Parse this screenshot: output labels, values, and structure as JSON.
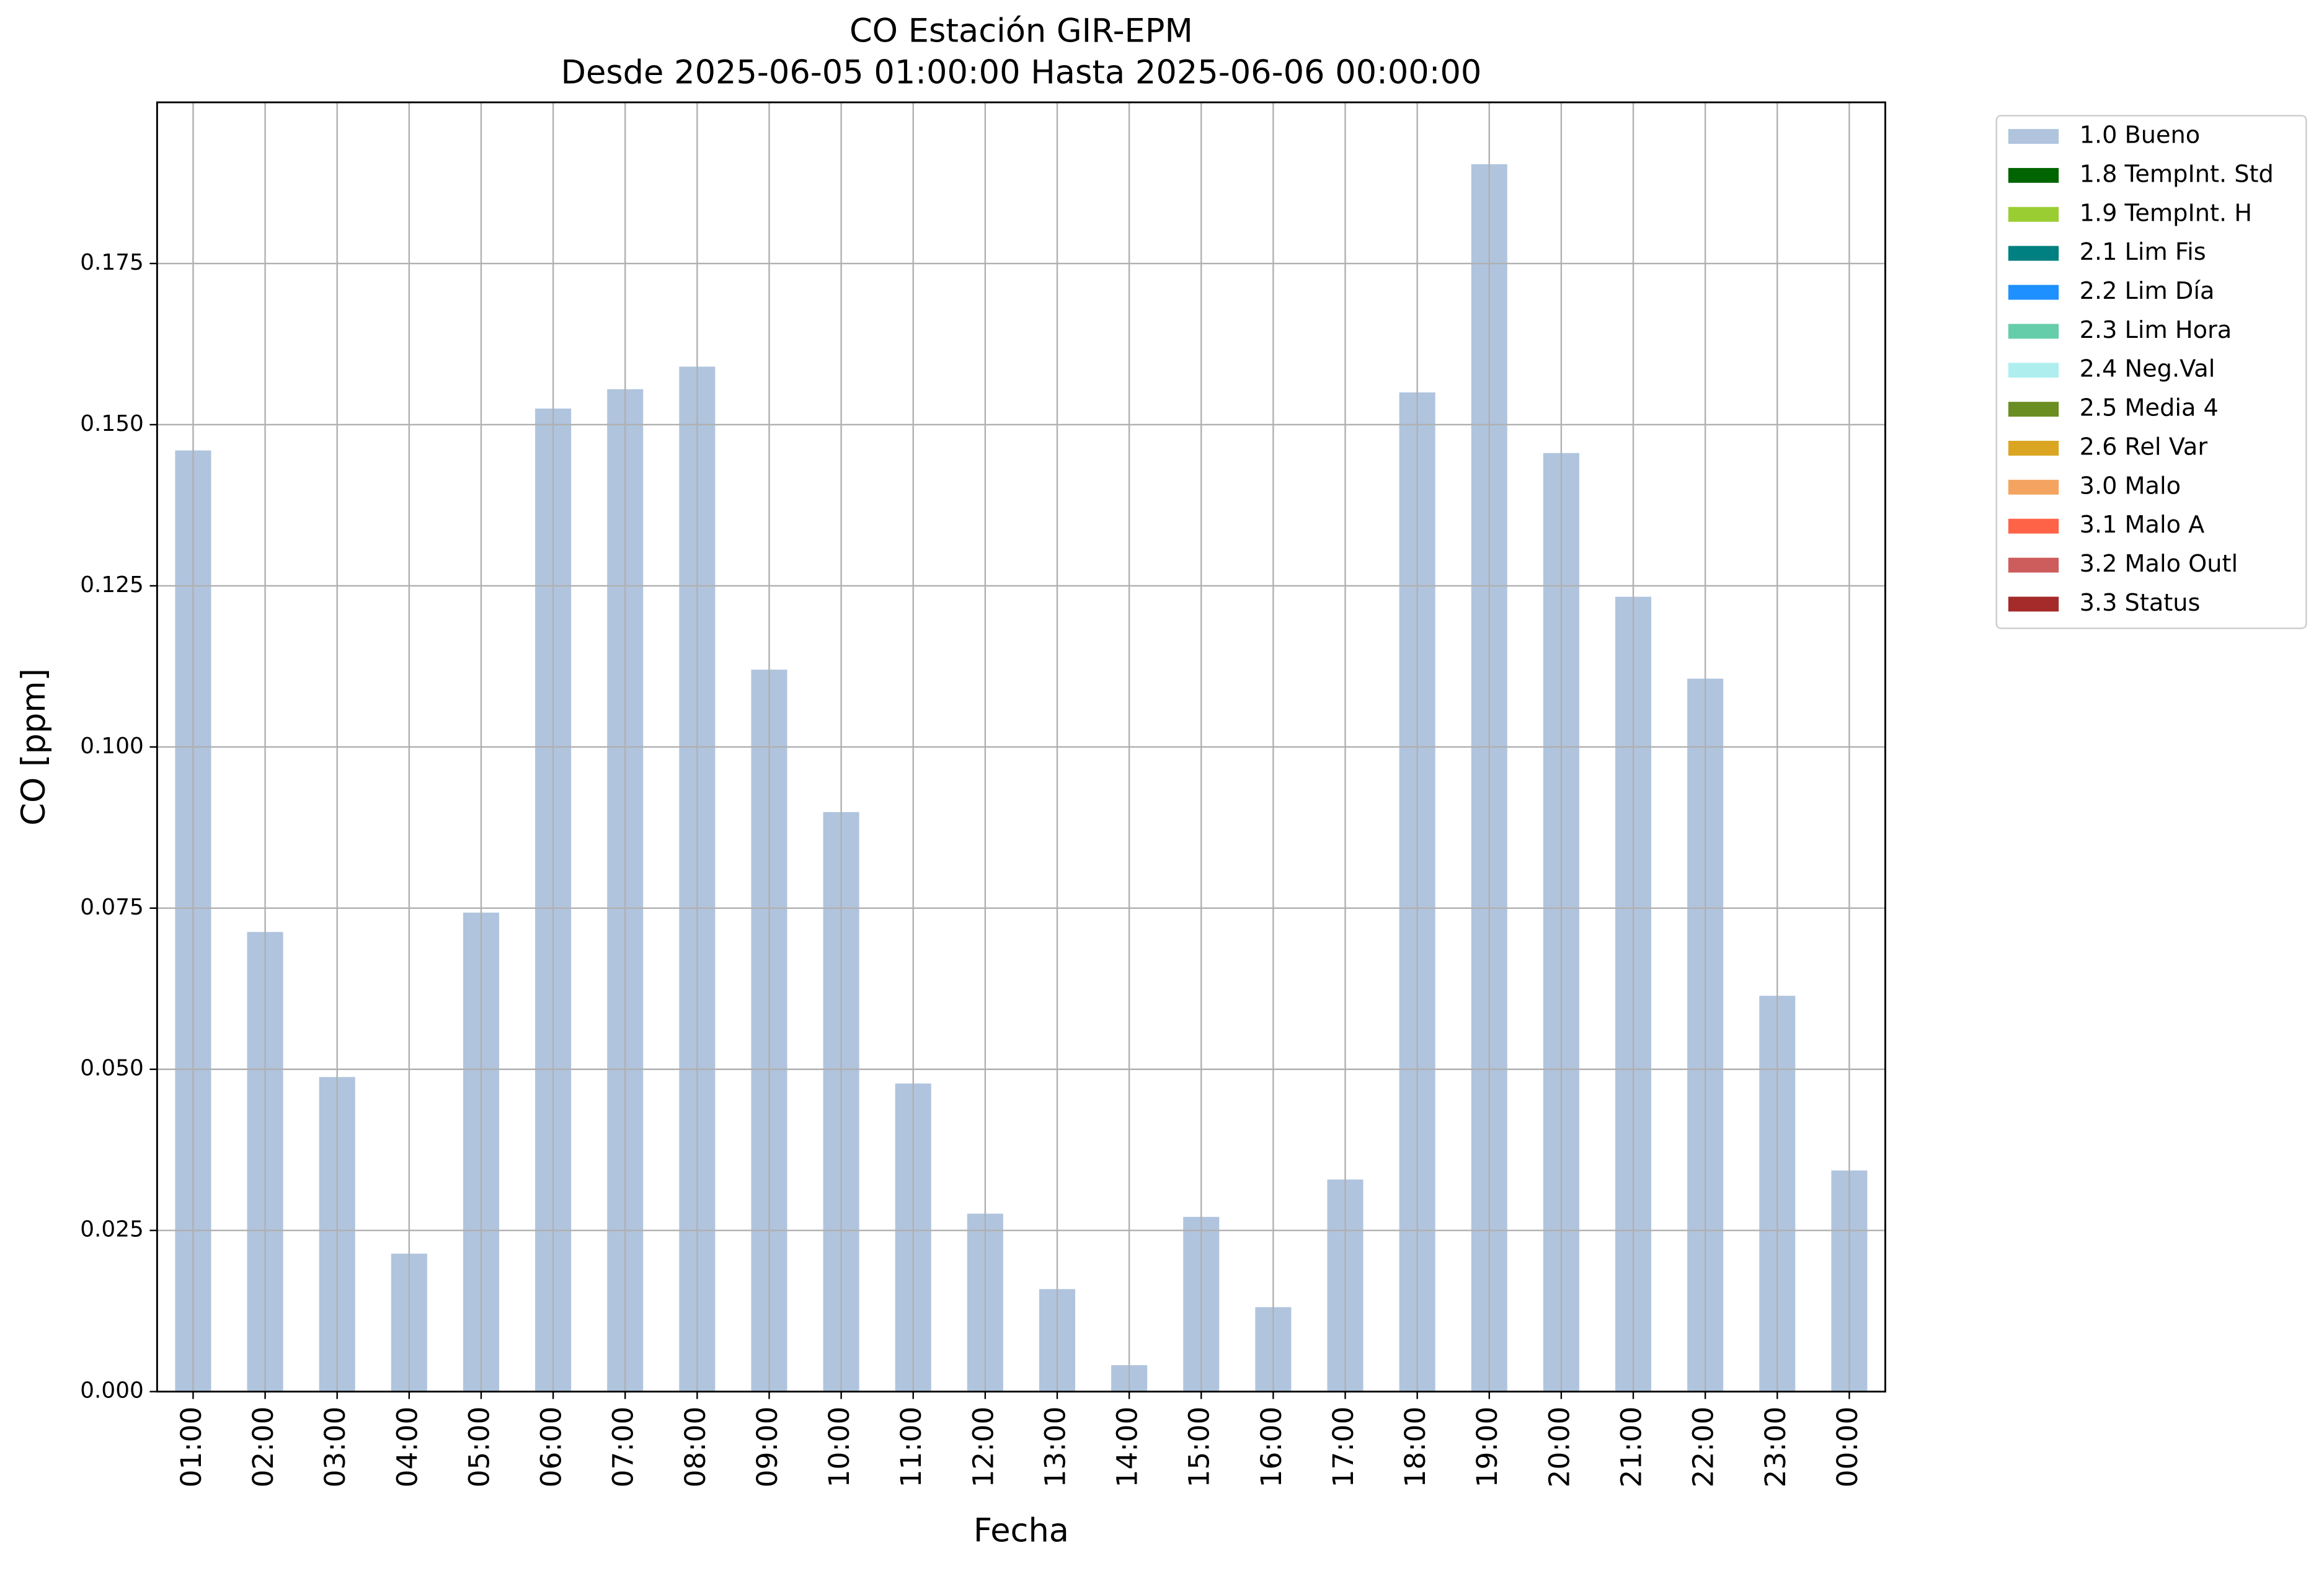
{
  "chart_data": {
    "type": "bar",
    "title": "CO Estación GIR-EPM",
    "subtitle": "Desde 2025-06-05 01:00:00 Hasta 2025-06-06 00:00:00",
    "x_label": "Fecha",
    "y_label": "CO [ppm]",
    "categories": [
      "01:00",
      "02:00",
      "03:00",
      "04:00",
      "05:00",
      "06:00",
      "07:00",
      "08:00",
      "09:00",
      "10:00",
      "11:00",
      "12:00",
      "13:00",
      "14:00",
      "15:00",
      "16:00",
      "17:00",
      "18:00",
      "19:00",
      "20:00",
      "21:00",
      "22:00",
      "23:00",
      "00:00"
    ],
    "series": [
      {
        "name": "1.0 Bueno",
        "color": "#b0c4de",
        "values": [
          0.146,
          0.0713,
          0.0488,
          0.0214,
          0.0743,
          0.1525,
          0.1555,
          0.159,
          0.112,
          0.0899,
          0.0478,
          0.0276,
          0.0159,
          0.0041,
          0.0271,
          0.0131,
          0.0329,
          0.155,
          0.1904,
          0.1456,
          0.1233,
          0.1106,
          0.0614,
          0.0343
        ]
      }
    ],
    "legend_entries": [
      {
        "name": "1.8 TempInt. Std",
        "color": "#006400"
      },
      {
        "name": "1.9 TempInt. H",
        "color": "#9acd32"
      },
      {
        "name": "2.1 Lim Fis",
        "color": "#008080"
      },
      {
        "name": "2.2 Lim Día",
        "color": "#1e90ff"
      },
      {
        "name": "2.3 Lim Hora",
        "color": "#66cdaa"
      },
      {
        "name": "2.4 Neg.Val",
        "color": "#afeeee"
      },
      {
        "name": "2.5 Media 4",
        "color": "#6b8e23"
      },
      {
        "name": "2.6 Rel Var",
        "color": "#daa520"
      },
      {
        "name": "3.0 Malo",
        "color": "#f4a460"
      },
      {
        "name": "3.1 Malo A",
        "color": "#ff6347"
      },
      {
        "name": "3.2 Malo Outl",
        "color": "#cd5c5c"
      },
      {
        "name": "3.3 Status",
        "color": "#a52a2a"
      }
    ],
    "ylim": [
      0,
      0.2
    ],
    "yticks": [
      {
        "value": 0,
        "label": "0.000"
      },
      {
        "value": 0.025,
        "label": "0.025"
      },
      {
        "value": 0.05,
        "label": "0.050"
      },
      {
        "value": 0.075,
        "label": "0.075"
      },
      {
        "value": 0.1,
        "label": "0.100"
      },
      {
        "value": 0.125,
        "label": "0.125"
      },
      {
        "value": 0.15,
        "label": "0.150"
      },
      {
        "value": 0.175,
        "label": "0.175"
      }
    ],
    "grid": true,
    "legend_position": "outside-right"
  }
}
